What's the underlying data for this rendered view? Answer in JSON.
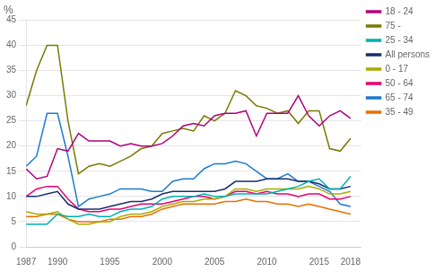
{
  "chart_data": {
    "type": "line",
    "ylabel": "%",
    "x": [
      1987,
      1988,
      1989,
      1990,
      1991,
      1992,
      1993,
      1994,
      1995,
      1996,
      1997,
      1998,
      1999,
      2000,
      2001,
      2002,
      2003,
      2004,
      2005,
      2006,
      2007,
      2008,
      2009,
      2010,
      2011,
      2012,
      2013,
      2014,
      2015,
      2016,
      2017,
      2018
    ],
    "series": [
      {
        "name": "18 - 24",
        "color": "#b0007a",
        "values": [
          15.5,
          13.5,
          14.0,
          19.5,
          19.0,
          22.5,
          21.0,
          21.0,
          21.0,
          20.0,
          20.5,
          20.0,
          20.0,
          20.5,
          22.0,
          24.0,
          24.5,
          24.0,
          26.0,
          26.5,
          26.5,
          27.0,
          22.0,
          26.5,
          26.5,
          26.5,
          30.0,
          26.0,
          24.0,
          26.0,
          27.0,
          25.5
        ]
      },
      {
        "name": "75 -",
        "color": "#7a7a00",
        "values": [
          28.0,
          35.0,
          40.0,
          40.0,
          25.0,
          14.5,
          16.0,
          16.5,
          16.0,
          17.0,
          18.0,
          19.5,
          20.0,
          22.5,
          23.0,
          23.5,
          23.0,
          26.0,
          25.0,
          26.5,
          31.0,
          30.0,
          28.0,
          27.5,
          26.5,
          27.0,
          24.5,
          27.0,
          27.0,
          19.5,
          19.0,
          21.5
        ]
      },
      {
        "name": "25 - 34",
        "color": "#00b0b0",
        "values": [
          4.5,
          4.5,
          4.5,
          6.5,
          6.0,
          6.0,
          6.5,
          6.0,
          6.0,
          7.0,
          7.5,
          7.5,
          8.0,
          9.5,
          10.0,
          10.0,
          10.0,
          10.5,
          10.0,
          10.0,
          10.5,
          10.5,
          10.5,
          10.5,
          11.0,
          11.5,
          12.0,
          13.0,
          13.5,
          11.5,
          11.5,
          14.0
        ]
      },
      {
        "name": "All persons",
        "color": "#1a2e6e",
        "values": [
          10.0,
          10.0,
          10.5,
          11.0,
          8.5,
          7.5,
          7.5,
          7.5,
          8.0,
          8.5,
          9.0,
          9.0,
          9.5,
          10.5,
          11.0,
          11.0,
          11.0,
          11.0,
          11.0,
          11.5,
          13.0,
          13.0,
          13.0,
          13.5,
          13.5,
          13.5,
          13.0,
          13.0,
          12.5,
          11.5,
          11.5,
          12.0
        ]
      },
      {
        "name": "0 - 17",
        "color": "#aaaa00",
        "values": [
          7.0,
          6.5,
          6.5,
          7.0,
          5.5,
          4.5,
          4.5,
          5.0,
          5.0,
          6.0,
          6.5,
          6.5,
          7.0,
          8.0,
          8.5,
          9.0,
          9.0,
          9.5,
          9.5,
          10.0,
          11.5,
          11.5,
          11.0,
          11.5,
          11.5,
          11.5,
          11.5,
          12.0,
          11.5,
          10.5,
          10.5,
          11.0
        ]
      },
      {
        "name": "50 - 64",
        "color": "#e8006e",
        "values": [
          10.0,
          11.5,
          12.0,
          12.0,
          9.5,
          7.5,
          7.0,
          7.0,
          7.5,
          7.5,
          8.0,
          8.5,
          8.5,
          8.5,
          9.0,
          9.5,
          10.0,
          10.0,
          9.5,
          10.0,
          11.0,
          11.0,
          10.5,
          11.0,
          10.5,
          10.5,
          10.0,
          10.5,
          10.5,
          9.5,
          9.5,
          10.0
        ]
      },
      {
        "name": "65 - 74",
        "color": "#1e7acd",
        "values": [
          16.0,
          18.0,
          26.5,
          26.5,
          18.0,
          8.0,
          9.5,
          10.0,
          10.5,
          11.5,
          11.5,
          11.5,
          11.0,
          11.0,
          13.0,
          13.5,
          13.5,
          15.5,
          16.5,
          16.5,
          17.0,
          16.5,
          15.0,
          13.5,
          13.5,
          14.5,
          13.0,
          13.0,
          12.0,
          11.0,
          8.5,
          8.0
        ]
      },
      {
        "name": "35 - 49",
        "color": "#e87000",
        "values": [
          6.0,
          6.0,
          6.5,
          6.5,
          5.5,
          5.0,
          5.0,
          5.0,
          5.5,
          5.5,
          6.0,
          6.0,
          6.5,
          7.5,
          8.0,
          8.5,
          8.5,
          8.5,
          8.5,
          9.0,
          9.0,
          9.5,
          9.0,
          9.0,
          8.5,
          8.5,
          8.0,
          8.5,
          8.0,
          7.5,
          7.0,
          6.5
        ]
      }
    ],
    "xlim": [
      1987,
      2019
    ],
    "xticks": [
      1987,
      1990,
      1995,
      2000,
      2005,
      2010,
      2015,
      2018
    ],
    "ylim": [
      0,
      45
    ],
    "yticks": [
      0,
      5,
      10,
      15,
      20,
      25,
      30,
      35,
      40,
      45
    ],
    "grid": "y",
    "legend": "right"
  }
}
